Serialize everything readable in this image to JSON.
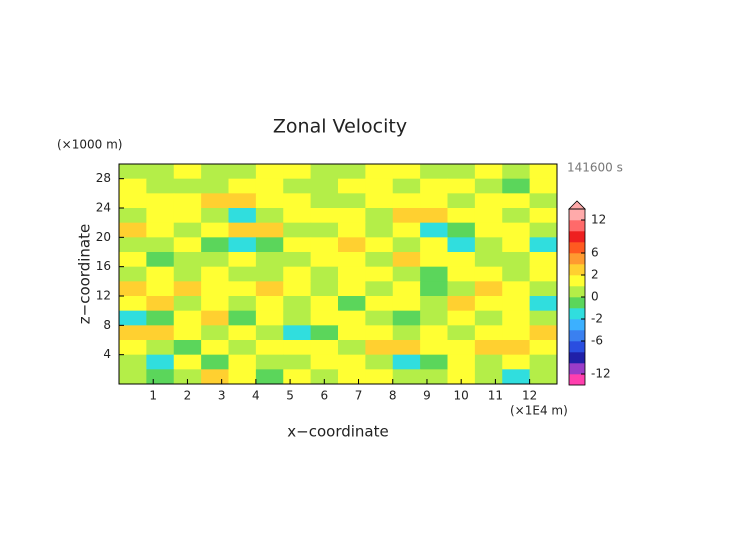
{
  "chart_data": {
    "type": "heatmap",
    "title": "Zonal Velocity",
    "y_unit_label": "(×1000 m)",
    "x_unit_label": "(×1E4 m)",
    "time_label": "141600 s",
    "xlabel": "x−coordinate",
    "ylabel": "z−coordinate",
    "xlim": [
      0,
      12.8
    ],
    "ylim": [
      0,
      30
    ],
    "xticks": [
      1,
      2,
      3,
      4,
      5,
      6,
      7,
      8,
      9,
      10,
      11,
      12
    ],
    "yticks": [
      4,
      8,
      12,
      16,
      20,
      24,
      28
    ],
    "x": [
      0.4,
      1.2,
      2.0,
      2.8,
      3.6,
      4.4,
      5.2,
      6.0,
      6.8,
      7.6,
      8.4,
      9.2,
      10.0,
      10.8,
      11.6,
      12.4
    ],
    "y": [
      29,
      27,
      25,
      23,
      21,
      19,
      17,
      15,
      13,
      11,
      9,
      7,
      5,
      3,
      1
    ],
    "values": [
      [
        0.5,
        0.5,
        1.5,
        0.5,
        0.5,
        1.5,
        1.5,
        0.5,
        0.5,
        1.5,
        1.5,
        0.5,
        0.5,
        1.5,
        0.5,
        1.5
      ],
      [
        1.5,
        0.5,
        0.5,
        0.5,
        1.5,
        1.5,
        0.5,
        0.5,
        1.5,
        1.5,
        0.5,
        1.5,
        1.5,
        0.5,
        -0.5,
        1.5
      ],
      [
        1.5,
        1.5,
        1.5,
        3,
        3,
        1.5,
        1.5,
        0.5,
        0.5,
        1.5,
        1.5,
        1.5,
        0.5,
        1.5,
        1.5,
        0.5
      ],
      [
        0.5,
        1.5,
        1.5,
        0.5,
        -1.5,
        0.5,
        1.5,
        1.5,
        1.5,
        0.5,
        3,
        3,
        1.5,
        1.5,
        0.5,
        1.5
      ],
      [
        3,
        1.5,
        0.5,
        1.5,
        3,
        3,
        0.5,
        0.5,
        1.5,
        0.5,
        1.5,
        -1.5,
        -0.5,
        1.5,
        1.5,
        0.5
      ],
      [
        0.5,
        0.5,
        1.5,
        -0.5,
        -1.5,
        -0.5,
        1.5,
        1.5,
        3,
        1.5,
        0.5,
        1.5,
        -1.5,
        0.5,
        1.5,
        -1.5
      ],
      [
        1.5,
        -0.5,
        0.5,
        0.5,
        1.5,
        0.5,
        0.5,
        1.5,
        1.5,
        0.5,
        3,
        1.5,
        1.5,
        0.5,
        0.5,
        1.5
      ],
      [
        0.5,
        1.5,
        0.5,
        1.5,
        0.5,
        0.5,
        1.5,
        0.5,
        1.5,
        1.5,
        0.5,
        -0.5,
        1.5,
        1.5,
        0.5,
        1.5
      ],
      [
        3,
        1.5,
        3,
        1.5,
        1.5,
        3,
        1.5,
        0.5,
        1.5,
        0.5,
        1.5,
        -0.5,
        0.5,
        3,
        1.5,
        0.5
      ],
      [
        1.5,
        3,
        0.5,
        1.5,
        0.5,
        1.5,
        0.5,
        1.5,
        -0.5,
        1.5,
        1.5,
        0.5,
        3,
        1.5,
        1.5,
        -1.5
      ],
      [
        -1.5,
        -0.5,
        1.5,
        3,
        -0.5,
        1.5,
        0.5,
        1.5,
        1.5,
        0.5,
        -0.5,
        0.5,
        1.5,
        0.5,
        1.5,
        0.5
      ],
      [
        3,
        3,
        1.5,
        0.5,
        1.5,
        0.5,
        -1.5,
        -0.5,
        1.5,
        1.5,
        0.5,
        1.5,
        0.5,
        1.5,
        1.5,
        3
      ],
      [
        1.5,
        0.5,
        -0.5,
        1.5,
        0.5,
        1.5,
        1.5,
        1.5,
        0.5,
        3,
        3,
        1.5,
        1.5,
        3,
        3,
        1.5
      ],
      [
        0.5,
        -1.5,
        1.5,
        -0.5,
        1.5,
        0.5,
        0.5,
        1.5,
        1.5,
        0.5,
        -1.5,
        -0.5,
        1.5,
        0.5,
        1.5,
        0.5
      ],
      [
        0.5,
        -0.5,
        0.5,
        3,
        1.5,
        -0.5,
        1.5,
        0.5,
        1.5,
        1.5,
        0.5,
        0.5,
        1.5,
        0.5,
        -1.5,
        0.5
      ]
    ],
    "colorbar": {
      "levels": [
        -14,
        -12,
        -10,
        -8,
        -6,
        -4,
        -2,
        -1,
        0,
        1,
        2,
        4,
        6,
        8,
        10,
        12,
        14
      ],
      "colors": [
        "#ff3fae",
        "#9a3cc8",
        "#2020a8",
        "#2a4ee0",
        "#3a80f0",
        "#3cb0ff",
        "#30dede",
        "#5bd65b",
        "#b4ee48",
        "#ffff33",
        "#ffd030",
        "#ff9a30",
        "#ff5a20",
        "#ee2020",
        "#ff6a6a",
        "#ffaaaa"
      ],
      "ticks": [
        12,
        6,
        2,
        0,
        -2,
        -6,
        -12
      ]
    }
  }
}
